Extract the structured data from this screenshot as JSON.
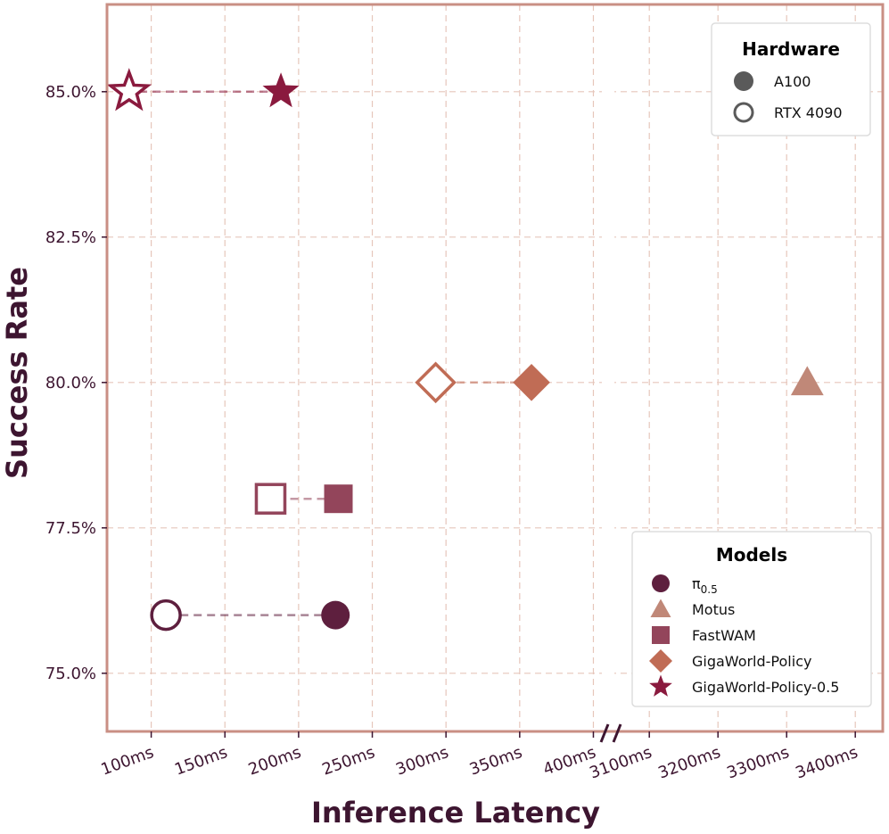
{
  "chart_data": {
    "type": "scatter",
    "xlabel": "Inference Latency",
    "ylabel": "Success Rate",
    "y_ticks": [
      "75.0%",
      "77.5%",
      "80.0%",
      "82.5%",
      "85.0%"
    ],
    "y_tick_values": [
      75.0,
      77.5,
      80.0,
      82.5,
      85.0
    ],
    "ylim": [
      74.0,
      86.5
    ],
    "x_axis_broken": true,
    "x_segments": [
      {
        "range_ms": [
          70,
          410
        ],
        "ticks": [
          100,
          150,
          200,
          250,
          300,
          350,
          400
        ],
        "tick_labels": [
          "100ms",
          "150ms",
          "200ms",
          "250ms",
          "300ms",
          "350ms",
          "400ms"
        ]
      },
      {
        "range_ms": [
          3040,
          3440
        ],
        "ticks": [
          3100,
          3200,
          3300,
          3400
        ],
        "tick_labels": [
          "3100ms",
          "3200ms",
          "3300ms",
          "3400ms"
        ]
      }
    ],
    "grid": true,
    "legends": [
      {
        "title": "Hardware",
        "placement": "top-right",
        "entries": [
          {
            "label": "A100",
            "style": "filled"
          },
          {
            "label": "RTX 4090",
            "style": "hollow"
          }
        ]
      },
      {
        "title": "Models",
        "placement": "lower-right",
        "entries": [
          {
            "label": "π",
            "sub": "0.5",
            "marker": "circle",
            "color": "#5e1f3e"
          },
          {
            "label": "Motus",
            "marker": "triangle",
            "color": "#c08878"
          },
          {
            "label": "FastWAM",
            "marker": "square",
            "color": "#93455b"
          },
          {
            "label": "GigaWorld-Policy",
            "marker": "diamond",
            "color": "#c06c55"
          },
          {
            "label": "GigaWorld-Policy-0.5",
            "marker": "star",
            "color": "#8a1a3e"
          }
        ]
      }
    ],
    "series": [
      {
        "model": "π0.5",
        "marker": "circle",
        "color": "#5e1f3e",
        "points": [
          {
            "hardware": "A100",
            "x": 225,
            "y": 76.0
          },
          {
            "hardware": "RTX 4090",
            "x": 110,
            "y": 76.0
          }
        ]
      },
      {
        "model": "Motus",
        "marker": "triangle",
        "color": "#c08878",
        "points": [
          {
            "hardware": "A100",
            "x": 3330,
            "y": 80.0
          }
        ]
      },
      {
        "model": "FastWAM",
        "marker": "square",
        "color": "#93455b",
        "points": [
          {
            "hardware": "A100",
            "x": 227,
            "y": 78.0
          },
          {
            "hardware": "RTX 4090",
            "x": 181,
            "y": 78.0
          }
        ]
      },
      {
        "model": "GigaWorld-Policy",
        "marker": "diamond",
        "color": "#c06c55",
        "points": [
          {
            "hardware": "A100",
            "x": 358,
            "y": 80.0
          },
          {
            "hardware": "RTX 4090",
            "x": 293,
            "y": 80.0
          }
        ]
      },
      {
        "model": "GigaWorld-Policy-0.5",
        "marker": "star",
        "color": "#8a1a3e",
        "points": [
          {
            "hardware": "A100",
            "x": 188,
            "y": 85.0
          },
          {
            "hardware": "RTX 4090",
            "x": 85,
            "y": 85.0
          }
        ]
      }
    ],
    "colors": {
      "frame": "#c98f84",
      "text": "#3d1530",
      "grid": "#e6c6bb",
      "hardware_marker": "#5a5a5a"
    }
  }
}
